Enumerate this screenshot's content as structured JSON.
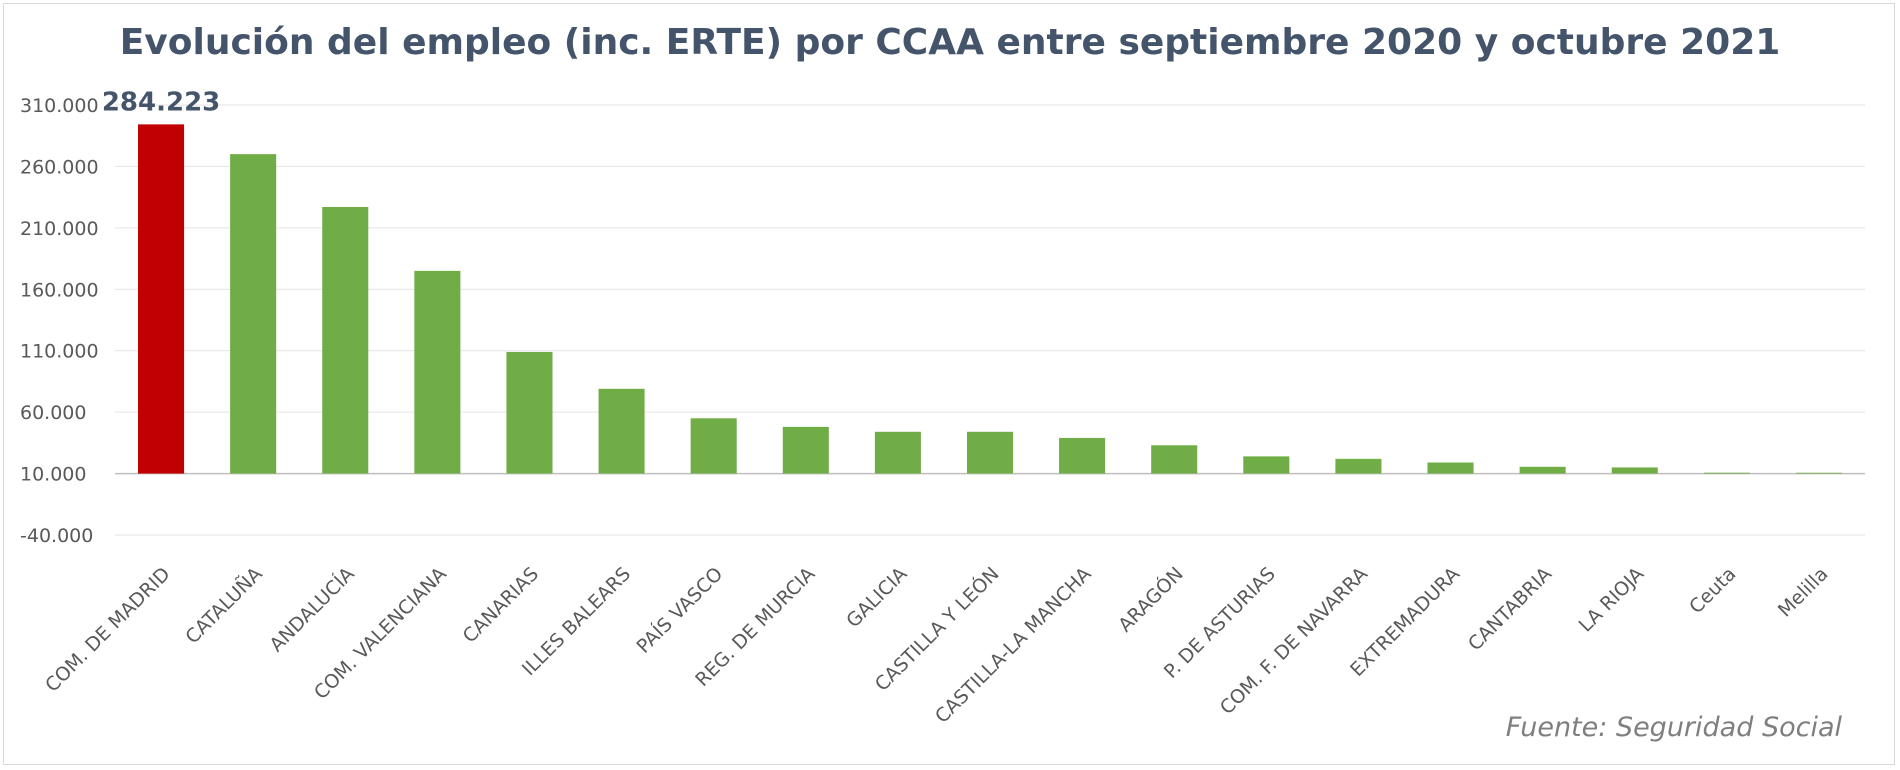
{
  "chart_data": {
    "type": "bar",
    "title": "Evolución del empleo (inc. ERTE) por CCAA entre septiembre 2020 y octubre 2021",
    "xlabel": "",
    "ylabel": "",
    "ylim": [
      -40000,
      310000
    ],
    "yticks": [
      310000,
      260000,
      210000,
      160000,
      110000,
      60000,
      10000,
      -40000
    ],
    "ytick_labels": [
      "310.000",
      "260.000",
      "210.000",
      "160.000",
      "110.000",
      "60.000",
      "10.000",
      "-40.000"
    ],
    "grid": true,
    "legend": "none",
    "categories": [
      "COM. DE MADRID",
      "CATALUÑA",
      "ANDALUCÍA",
      "COM. VALENCIANA",
      "CANARIAS",
      "ILLES BALEARS",
      "PAÍS VASCO",
      "REG. DE MURCIA",
      "GALICIA",
      "CASTILLA Y LEÓN",
      "CASTILLA-LA MANCHA",
      "ARAGÓN",
      "P. DE ASTURIAS",
      "COM. F. DE NAVARRA",
      "EXTREMADURA",
      "CANTABRIA",
      "LA RIOJA",
      "Ceuta",
      "Melilla"
    ],
    "values": [
      284223,
      260000,
      217000,
      165000,
      99000,
      69000,
      45000,
      38000,
      34000,
      34000,
      29000,
      23000,
      14000,
      12000,
      9000,
      5500,
      5000,
      700,
      400
    ],
    "colors": [
      "#c00000",
      "#70ad47",
      "#70ad47",
      "#70ad47",
      "#70ad47",
      "#70ad47",
      "#70ad47",
      "#70ad47",
      "#70ad47",
      "#70ad47",
      "#70ad47",
      "#70ad47",
      "#70ad47",
      "#70ad47",
      "#70ad47",
      "#70ad47",
      "#70ad47",
      "#70ad47",
      "#70ad47"
    ],
    "data_labels": [
      "284.223",
      "",
      "",
      "",
      "",
      "",
      "",
      "",
      "",
      "",
      "",
      "",
      "",
      "",
      "",
      "",
      "",
      "",
      ""
    ]
  },
  "source": "Fuente: Seguridad Social"
}
